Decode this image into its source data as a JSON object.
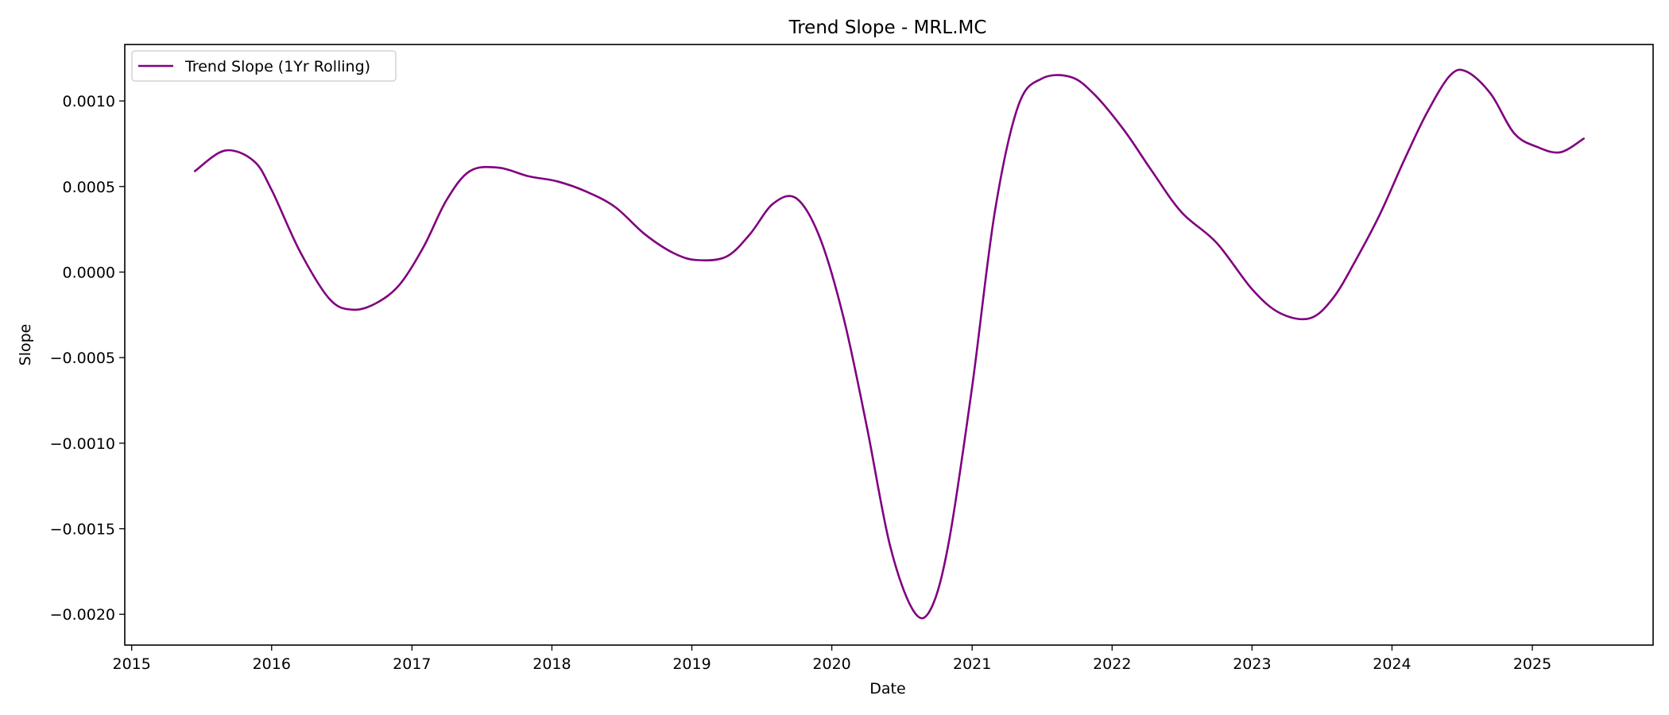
{
  "chart_data": {
    "type": "line",
    "title": "Trend Slope - MRL.MC",
    "xlabel": "Date",
    "ylabel": "Slope",
    "x_ticks": [
      "2015",
      "2016",
      "2017",
      "2018",
      "2019",
      "2020",
      "2021",
      "2022",
      "2023",
      "2024",
      "2025"
    ],
    "y_ticks": [
      "0.0010",
      "0.0005",
      "0.0000",
      "−0.0005",
      "−0.0010",
      "−0.0015",
      "−0.0020"
    ],
    "xlim": [
      "2014-12-14",
      "2025-11-12"
    ],
    "ylim": [
      -0.00218,
      0.00133
    ],
    "grid": false,
    "legend": {
      "placement": "top-left",
      "entries": [
        "Trend Slope (1Yr Rolling)"
      ]
    },
    "series": [
      {
        "name": "Trend Slope (1Yr Rolling)",
        "color": "#800080",
        "x": [
          "2015-06-15",
          "2015-09-01",
          "2015-11-15",
          "2016-01-01",
          "2016-03-15",
          "2016-06-01",
          "2016-08-01",
          "2016-10-01",
          "2016-12-01",
          "2017-02-01",
          "2017-04-01",
          "2017-06-01",
          "2017-08-15",
          "2017-11-01",
          "2018-01-15",
          "2018-04-01",
          "2018-06-15",
          "2018-09-01",
          "2018-11-15",
          "2019-01-15",
          "2019-04-01",
          "2019-06-01",
          "2019-08-01",
          "2019-10-01",
          "2019-12-01",
          "2020-02-01",
          "2020-04-01",
          "2020-06-01",
          "2020-08-01",
          "2020-09-15",
          "2020-11-01",
          "2021-01-01",
          "2021-03-01",
          "2021-05-01",
          "2021-07-01",
          "2021-09-15",
          "2021-11-15",
          "2022-02-01",
          "2022-04-15",
          "2022-07-01",
          "2022-10-01",
          "2023-01-01",
          "2023-03-15",
          "2023-06-01",
          "2023-08-01",
          "2023-10-01",
          "2023-12-01",
          "2024-02-01",
          "2024-04-01",
          "2024-06-01",
          "2024-07-15",
          "2024-09-15",
          "2024-11-15",
          "2025-01-15",
          "2025-03-15",
          "2025-05-15"
        ],
        "y": [
          0.00059,
          0.00071,
          0.00065,
          0.00048,
          0.00012,
          -0.00016,
          -0.00022,
          -0.00018,
          -7e-05,
          0.00015,
          0.00042,
          0.00059,
          0.00061,
          0.00056,
          0.00053,
          0.00047,
          0.00038,
          0.00022,
          0.00011,
          7e-05,
          9e-05,
          0.00022,
          0.0004,
          0.00043,
          0.0002,
          -0.00027,
          -0.0009,
          -0.0016,
          -0.00198,
          -0.00197,
          -0.00158,
          -0.00067,
          0.00035,
          0.00097,
          0.00113,
          0.00114,
          0.00104,
          0.00083,
          0.00059,
          0.00035,
          0.00017,
          -0.0001,
          -0.00024,
          -0.00027,
          -0.00015,
          8e-05,
          0.00034,
          0.00065,
          0.00093,
          0.00115,
          0.00117,
          0.00104,
          0.00081,
          0.00073,
          0.0007,
          0.00078
        ]
      }
    ]
  }
}
